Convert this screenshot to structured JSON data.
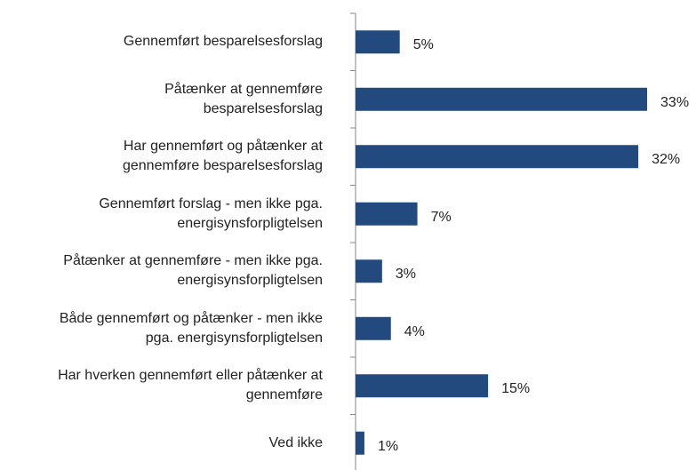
{
  "chart_data": {
    "type": "bar",
    "orientation": "horizontal",
    "categories": [
      "Gennemført besparelsesforslag",
      "Påtænker at gennemføre\nbesparelsesforslag",
      "Har gennemført og påtænker at\ngennemføre besparelsesforslag",
      "Gennemført forslag - men ikke pga.\nenergisynsforpligtelsen",
      "Påtænker at gennemføre - men ikke pga.\nenergisynsforpligtelsen",
      "Både gennemført og påtænker - men ikke\npga. energisynsforpligtelsen",
      "Har hverken gennemført eller påtænker at\ngennemføre",
      "Ved ikke"
    ],
    "values": [
      5,
      33,
      32,
      7,
      3,
      4,
      15,
      1
    ],
    "value_labels": [
      "5%",
      "33%",
      "32%",
      "7%",
      "3%",
      "4%",
      "15%",
      "1%"
    ],
    "color": "#234a7e"
  }
}
